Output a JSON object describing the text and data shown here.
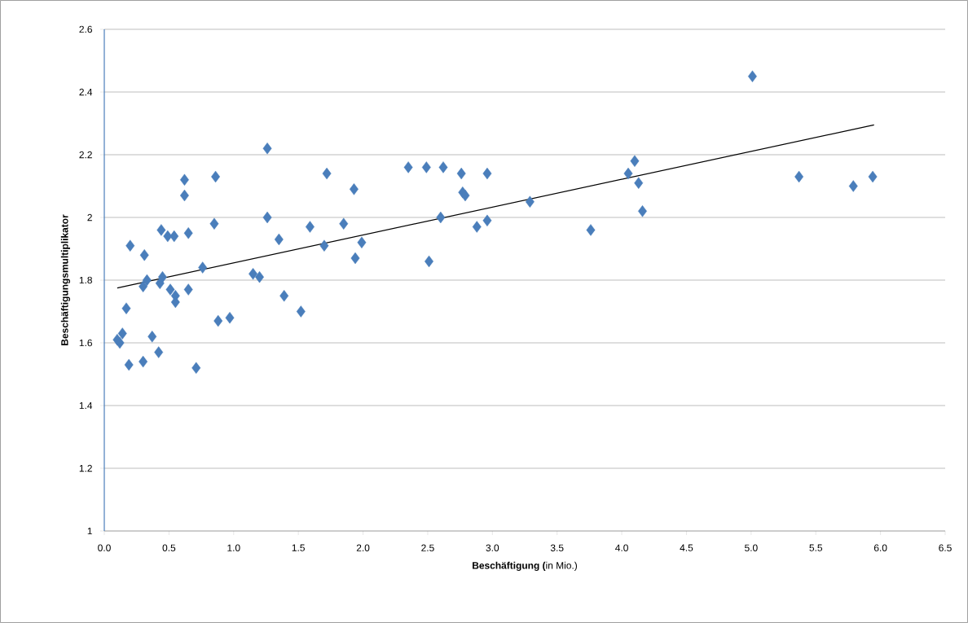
{
  "chart_data": {
    "type": "scatter",
    "xlabel": "**Beschäftigung  (**in Mio.)",
    "ylabel": "Beschäftigungsmultiplikator",
    "xlim": [
      0,
      6.5
    ],
    "ylim": [
      1,
      2.6
    ],
    "xticks": [
      {
        "value": 0,
        "label": "0.0"
      },
      {
        "value": 0.5,
        "label": "0.5"
      },
      {
        "value": 1,
        "label": "1.0"
      },
      {
        "value": 1.5,
        "label": "1.5"
      },
      {
        "value": 2,
        "label": "2.0"
      },
      {
        "value": 2.5,
        "label": "2.5"
      },
      {
        "value": 3,
        "label": "3.0"
      },
      {
        "value": 3.5,
        "label": "3.5"
      },
      {
        "value": 4,
        "label": "4.0"
      },
      {
        "value": 4.5,
        "label": "4.5"
      },
      {
        "value": 5,
        "label": "5.0"
      },
      {
        "value": 5.5,
        "label": "5.5"
      },
      {
        "value": 6,
        "label": "6.0"
      },
      {
        "value": 6.5,
        "label": "6.5"
      }
    ],
    "yticks": [
      1,
      1.2,
      1.4,
      1.6,
      1.8,
      2,
      2.2,
      2.4,
      2.6
    ],
    "grid": "y",
    "marker": "diamond",
    "series": [
      {
        "color": "#4a7ebb",
        "x": [
          0.1,
          0.14,
          0.12,
          0.17,
          0.2,
          0.19,
          0.31,
          0.3,
          0.3,
          0.33,
          0.37,
          0.42,
          0.44,
          0.45,
          0.43,
          0.49,
          0.54,
          0.51,
          0.55,
          0.55,
          0.62,
          0.62,
          0.65,
          0.65,
          0.71,
          0.76,
          0.86,
          0.85,
          0.88,
          0.97,
          1.26,
          1.26,
          1.35,
          1.15,
          1.2,
          1.39,
          1.52,
          1.59,
          1.72,
          1.7,
          1.85,
          1.93,
          1.94,
          1.99,
          2.35,
          2.49,
          2.62,
          2.51,
          2.6,
          2.76,
          2.77,
          2.79,
          2.88,
          2.96,
          2.96,
          3.29,
          3.76,
          4.05,
          4.1,
          4.13,
          4.16,
          5.01,
          5.37,
          5.79,
          5.94
        ],
        "values": [
          1.61,
          1.63,
          1.6,
          1.71,
          1.91,
          1.53,
          1.88,
          1.54,
          1.78,
          1.8,
          1.62,
          1.57,
          1.96,
          1.81,
          1.79,
          1.94,
          1.94,
          1.77,
          1.75,
          1.73,
          2.12,
          2.07,
          1.95,
          1.77,
          1.52,
          1.84,
          2.13,
          1.98,
          1.67,
          1.68,
          2.22,
          2.0,
          1.93,
          1.82,
          1.81,
          1.75,
          1.7,
          1.97,
          2.14,
          1.91,
          1.98,
          2.09,
          1.87,
          1.92,
          2.16,
          2.16,
          2.16,
          1.86,
          2.0,
          2.14,
          2.08,
          2.07,
          1.97,
          2.14,
          1.99,
          2.05,
          1.96,
          2.14,
          2.18,
          2.11,
          2.02,
          2.45,
          2.13,
          2.1,
          2.13
        ]
      },
      {
        "type": "line",
        "color": "#000000",
        "marker": "none",
        "line_style": "solid",
        "x": [
          0.1,
          5.95
        ],
        "values": [
          1.775,
          2.295
        ]
      }
    ]
  }
}
